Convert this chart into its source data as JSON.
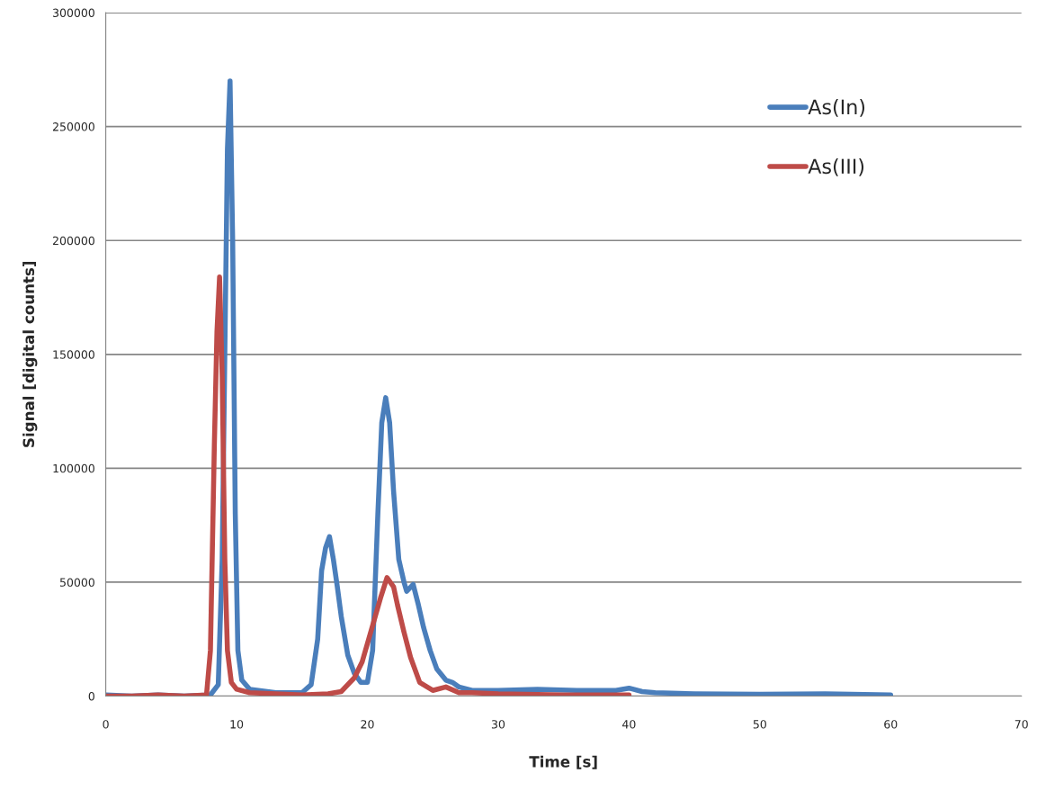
{
  "chart_data": {
    "type": "line",
    "xlabel": "Time [s]",
    "ylabel": "Signal [digital counts]",
    "xlim": [
      0,
      70
    ],
    "xticks": [
      0,
      10,
      20,
      30,
      40,
      50,
      60,
      70
    ],
    "ylim": [
      0,
      300000
    ],
    "yticks": [
      0,
      50000,
      100000,
      150000,
      200000,
      250000,
      300000
    ],
    "grid": "y",
    "legend": "top right",
    "marker": "none",
    "line_style": "solid",
    "series": [
      {
        "name": "As(In)",
        "color": "#4a7ebb",
        "x": [
          0,
          2,
          4,
          6,
          8,
          8.6,
          8.9,
          9.1,
          9.3,
          9.5,
          9.7,
          9.9,
          10.1,
          10.4,
          11,
          13,
          15,
          15.7,
          16.2,
          16.5,
          16.8,
          17.1,
          17.4,
          17.7,
          18,
          18.5,
          19,
          19.5,
          20,
          20.4,
          20.8,
          21.1,
          21.4,
          21.7,
          22,
          22.4,
          22.8,
          23,
          23.5,
          23.9,
          24.3,
          24.8,
          25.3,
          26,
          26.5,
          27,
          28,
          30,
          33,
          36,
          39,
          40,
          41,
          42,
          45,
          50,
          55,
          60
        ],
        "values": [
          500,
          0,
          500,
          0,
          500,
          5000,
          60000,
          150000,
          240000,
          270000,
          200000,
          80000,
          20000,
          7000,
          3000,
          1500,
          1500,
          5000,
          25000,
          55000,
          65000,
          70000,
          60000,
          48000,
          35000,
          18000,
          10000,
          6000,
          6000,
          20000,
          80000,
          120000,
          131000,
          120000,
          90000,
          60000,
          50000,
          46000,
          49000,
          40000,
          30000,
          20000,
          12000,
          7000,
          6000,
          4000,
          2500,
          2500,
          3000,
          2500,
          2500,
          3500,
          2000,
          1500,
          1000,
          800,
          1000,
          500
        ]
      },
      {
        "name": "As(III)",
        "color": "#be4b48",
        "x": [
          0,
          2,
          4,
          6,
          7.7,
          8.0,
          8.3,
          8.5,
          8.7,
          8.9,
          9.1,
          9.3,
          9.6,
          10,
          11,
          13,
          15,
          17,
          18,
          19,
          19.6,
          20.1,
          20.6,
          21,
          21.5,
          22,
          22.3,
          22.8,
          23.3,
          24,
          25,
          26,
          27,
          28,
          30,
          35,
          40
        ],
        "values": [
          0,
          0,
          500,
          0,
          500,
          20000,
          110000,
          160000,
          184000,
          140000,
          60000,
          20000,
          6000,
          3000,
          1500,
          1000,
          500,
          1000,
          2000,
          8000,
          15000,
          25000,
          35000,
          43000,
          52000,
          48000,
          40000,
          28000,
          17000,
          6000,
          2500,
          4000,
          1500,
          1500,
          1000,
          500,
          500
        ]
      }
    ]
  }
}
